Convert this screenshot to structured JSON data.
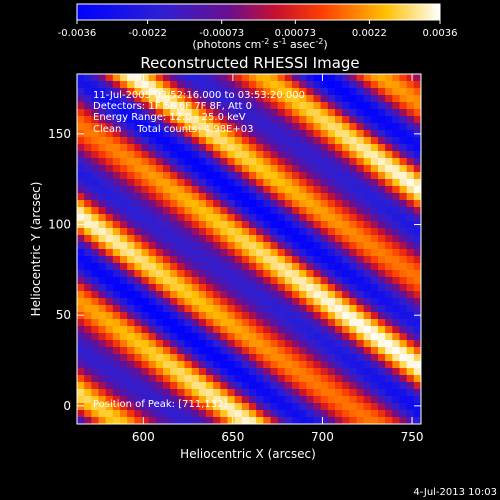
{
  "chart_data": {
    "type": "heatmap",
    "title": "Reconstructed RHESSI Image",
    "xlabel": "Heliocentric X (arcsec)",
    "ylabel": "Heliocentric Y (arcsec)",
    "xlim": [
      563,
      755
    ],
    "ylim": [
      -10,
      183
    ],
    "x_ticks": [
      600,
      650,
      700,
      750
    ],
    "y_ticks": [
      0,
      50,
      100,
      150
    ],
    "colorbar": {
      "min": -0.0036,
      "max": 0.0036,
      "ticks": [
        "-0.0036",
        "-0.0022",
        "-0.00073",
        "0.00073",
        "0.0022",
        "0.0036"
      ],
      "unit_base": "(photons cm",
      "unit_sup1": "-2",
      "unit_mid": " s",
      "unit_sup2": "-1",
      "unit_mid2": " asec",
      "unit_sup3": "-2",
      "unit_end": ")",
      "colormap": "blue-purple-red-yellow-white"
    },
    "annotations": {
      "time": "11-Jul-2005 03:52:16.000 to 03:53:20.000",
      "detectors": "Detectors: 1F 5F 6F 7F 8F, Att 0",
      "energy": "Energy Range: 12.0 - 25.0 keV",
      "method": "Clean     Total counts: 4.98E+03",
      "peak": "Position of Peak: [711,132]"
    },
    "pattern": {
      "description_type": "diagonal-stripes",
      "stripe_period_arcsec": 40,
      "stripe_direction_deg": -55
    }
  },
  "footer": {
    "timestamp": "4-Jul-2013 10:03"
  }
}
